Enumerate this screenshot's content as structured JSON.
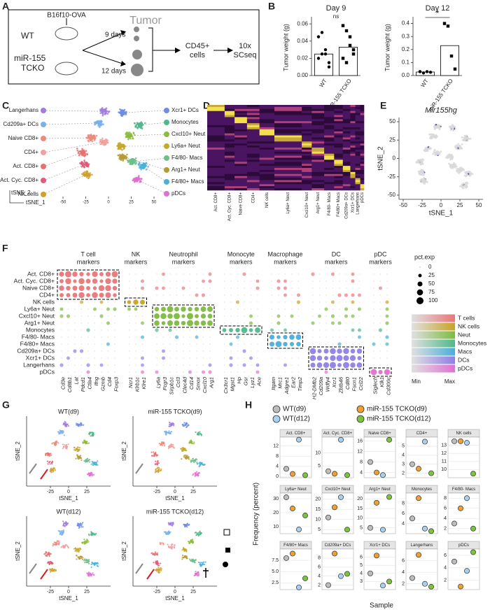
{
  "panel_labels": [
    "A",
    "B",
    "C",
    "D",
    "E",
    "F",
    "G",
    "H"
  ],
  "panel_a": {
    "mouse_label": "B16f10-OVA",
    "tumor": "Tumor",
    "wt": "WT",
    "ko_line1": "miR-155",
    "ko_line2": "TCKO",
    "day9": "9 days",
    "day12": "12 days",
    "cells_line1": "CD45+",
    "cells_line2": "cells",
    "seq_line1": "10x",
    "seq_line2": "SCseq"
  },
  "panel_b": {
    "ylabel": "Tumor weight (g)",
    "categories": [
      "WT",
      "miR-155 TCKO"
    ],
    "plots": [
      {
        "title": "Day 9",
        "sig": "ns",
        "ylim": [
          0,
          0.065
        ],
        "yticks": [
          {
            "value": 0,
            "label": "0.00"
          },
          {
            "value": 0.02,
            "label": "0.02"
          },
          {
            "value": 0.04,
            "label": "0.04"
          },
          {
            "value": 0.06,
            "label": "0.06"
          }
        ],
        "bars": [
          0.025,
          0.033
        ],
        "points": [
          [
            0.02,
            0.025,
            0.03,
            0.01,
            0.045,
            0.05,
            0.025,
            0.015
          ],
          [
            0.058,
            0.052,
            0.035,
            0.03,
            0.02,
            0.015,
            0.045,
            0.025
          ]
        ]
      },
      {
        "title": "Day 12",
        "sig": "*",
        "ylim": [
          0,
          0.43
        ],
        "yticks": [
          {
            "value": 0,
            "label": "0.0"
          },
          0.1,
          0.2,
          0.3,
          0.4
        ],
        "bars": [
          0.027,
          0.23
        ],
        "points": [
          [
            0.03,
            0.02,
            0.03,
            0.025,
            0.03
          ],
          [
            0.4,
            0.38,
            0.15,
            0.05
          ]
        ]
      }
    ]
  },
  "panel_c": {
    "left_labels": [
      "Langerhans",
      "Cd209a+ DCs",
      "Naive CD8+",
      "CD4+",
      "Act. CD8+",
      "Act. Cyc. CD8+",
      "NK cells"
    ],
    "right_labels": [
      "Xcr1+ DCs",
      "Monocytes",
      "Cxcl10+ Neut",
      "Ly6a+ Neut",
      "F4/80- Macs",
      "Arg1+ Neut",
      "F4/80+ Macs",
      "pDCs"
    ],
    "xticks": [
      -50,
      -25,
      0,
      25,
      50
    ],
    "xlabel": "tSNE_1",
    "ylabel": "tSNE_2"
  },
  "panel_d": {
    "columns": [
      "Act. CD8+",
      "Act. Cyc. CD8+",
      "Naive CD8+",
      "CD4+",
      "NK cells",
      "Ly6a+ Neut",
      "Cxcl10+ Neut",
      "Arg1+ Neut",
      "F4/80- Macs",
      "F4/80+ Macs",
      "Cd209a+ DCs",
      "Xcr1+ DCs",
      "Langerhans",
      "pDCs"
    ]
  },
  "panel_e": {
    "title": "Mir155hg",
    "xticks": [
      -50,
      -25,
      0,
      25,
      50
    ],
    "yticks": [
      50,
      25,
      0,
      -25,
      -50
    ],
    "xlabel": "tSNE_1",
    "ylabel": "tSNE_2"
  },
  "panel_f": {
    "rows": [
      "Act. CD8+",
      "Act. Cyc. CD8+",
      "Naive CD8+",
      "CD4+",
      "NK cells",
      "Ly6a+ Neut",
      "Cxcl10+ Neut",
      "Arg1+ Neut",
      "Monocytes",
      "F4/80- Macs",
      "F4/80+ Macs",
      "Cd209a+ DCs",
      "Xcr1+ DCs",
      "Langerhans",
      "pDCs"
    ],
    "groups": [
      {
        "title": [
          "T cell",
          "markers"
        ],
        "genes": [
          "Cd3e",
          "Cd8b1",
          "Lat",
          "Pdcd1",
          "Ctla4",
          "Ifng",
          "Gzmb",
          "Cd4",
          "Foxp3"
        ]
      },
      {
        "title": [
          "NK",
          "markers"
        ],
        "genes": [
          "Ncr1",
          "Klrb1c",
          "Klre1"
        ]
      },
      {
        "title": [
          "Neutrophil",
          "markers"
        ],
        "genes": [
          "Ly6a",
          "Fcgr3",
          "Sirpb1c",
          "Ccl3",
          "Clec4d",
          "Cd14",
          "Smox",
          "Cxcl10",
          "Arg1"
        ]
      },
      {
        "title": [
          "Monocyte",
          "markers"
        ],
        "genes": [
          "Cx3cr1",
          "Mgst1",
          "Hp",
          "Gsr",
          "Lyz1",
          "Ace"
        ]
      },
      {
        "title": [
          "Macrophage",
          "markers"
        ],
        "genes": [
          "Itgam",
          "Mrc1",
          "Adgre1",
          "Ear2",
          "Timp2"
        ]
      },
      {
        "title": [
          "DC",
          "markers"
        ],
        "genes": [
          "H2-DMb2",
          "Cd209a",
          "Wdfy4",
          "Xcr1",
          "Zbtb46",
          "Cd80",
          "Fscn1",
          "Ccl22"
        ]
      },
      {
        "title": [
          "pDC",
          "markers"
        ],
        "genes": [
          "Siglech",
          "Klk1",
          "Cd300c"
        ]
      }
    ],
    "size_legend": {
      "title": "pct.exp",
      "values": [
        0,
        25,
        50,
        75,
        100
      ]
    },
    "color_legend": {
      "labels": [
        "T cells",
        "NK cells",
        "Neut",
        "Monocytes",
        "Macs",
        "DCs",
        "pDCs"
      ],
      "min": "Min",
      "max": "Max"
    }
  },
  "panel_g": {
    "titles": [
      "WT(d9)",
      "miR-155 TCKO(d9)",
      "WT(d12)",
      "miR-155 TCKO(d12)"
    ],
    "xlabel": "tSNE_1",
    "ylabel": "tSNE_2",
    "xticks": [
      -25,
      0,
      25
    ]
  },
  "panel_h": {
    "ylabel": "Frequency (percent)",
    "xlabel": "Sample",
    "samples": [
      {
        "name": "WT(d9)",
        "color": "#bdbdbd"
      },
      {
        "name": "miR-155 TCKO(d9)",
        "color": "#f0a030"
      },
      {
        "name": "WT(d12)",
        "color": "#a8d0f0"
      },
      {
        "name": "miR-155 TCKO(d12)",
        "color": "#7cc43c"
      }
    ],
    "facets": [
      {
        "title": "Act. CD8+",
        "ylim": [
          -0.5,
          15.5
        ],
        "yticks": [
          0,
          4,
          8,
          12
        ],
        "values": [
          3,
          1,
          14.5,
          0.5
        ]
      },
      {
        "title": "Act. Cyc. CD8+",
        "ylim": [
          0.5,
          16
        ],
        "yticks": [
          5,
          10
        ],
        "values": [
          3,
          2,
          15,
          1.5
        ]
      },
      {
        "title": "Naive CD8+",
        "ylim": [
          2,
          17.5
        ],
        "yticks": [
          4,
          8,
          12,
          16
        ],
        "values": [
          8,
          4,
          3,
          16.5
        ]
      },
      {
        "title": "CD4+",
        "ylim": [
          1.5,
          6
        ],
        "yticks": [
          2,
          3,
          4,
          5
        ],
        "values": [
          3,
          2.5,
          5.5,
          2
        ]
      },
      {
        "title": "NK cells",
        "ylim": [
          9,
          14
        ],
        "yticks": [
          10,
          11,
          12,
          13
        ],
        "values": [
          13.5,
          13.5,
          13.3,
          9.5
        ]
      },
      {
        "title": "Ly6a+ Neut",
        "ylim": [
          5,
          34
        ],
        "yticks": [
          10,
          20,
          30
        ],
        "values": [
          31,
          23,
          8,
          18
        ]
      },
      {
        "title": "Cxcl10+ Neut",
        "ylim": [
          3,
          23
        ],
        "yticks": [
          5,
          10,
          15,
          20
        ],
        "values": [
          11,
          16,
          21,
          5
        ]
      },
      {
        "title": "Arg1+ Neut",
        "ylim": [
          2,
          23
        ],
        "yticks": [
          5,
          10,
          15,
          20
        ],
        "values": [
          5,
          18,
          4,
          21
        ]
      },
      {
        "title": "Monocytes",
        "ylim": [
          2,
          10
        ],
        "yticks": [
          4,
          6,
          8
        ],
        "values": [
          5,
          9,
          3,
          2.5
        ]
      },
      {
        "title": "F4/80- Macs",
        "ylim": [
          1,
          9
        ],
        "yticks": [
          2,
          4,
          6,
          8
        ],
        "values": [
          3,
          6,
          8,
          2
        ]
      },
      {
        "title": "F4/80+ Macs",
        "ylim": [
          1,
          10
        ],
        "yticks": [
          2.5,
          {
            "value": 5,
            "label": "5.0"
          },
          7.5
        ],
        "values": [
          8,
          9,
          1.5,
          3.5
        ]
      },
      {
        "title": "Cd209a+ DCs",
        "ylim": [
          1,
          10
        ],
        "yticks": [
          2,
          4,
          6,
          8
        ],
        "values": [
          2,
          9,
          4,
          4.5
        ]
      },
      {
        "title": "Xcr1+ DCs",
        "ylim": [
          2,
          7
        ],
        "yticks": [
          3,
          4,
          5,
          6
        ],
        "values": [
          4,
          6.2,
          2.5,
          3
        ]
      },
      {
        "title": "Langerhans",
        "ylim": [
          1,
          8
        ],
        "yticks": [
          2,
          4,
          6
        ],
        "values": [
          3,
          7,
          2,
          1.5
        ]
      },
      {
        "title": "pDCs",
        "ylim": [
          0.5,
          7
        ],
        "yticks": [
          2,
          4,
          6
        ],
        "values": [
          5,
          1,
          3.5,
          6.5
        ]
      }
    ]
  }
}
